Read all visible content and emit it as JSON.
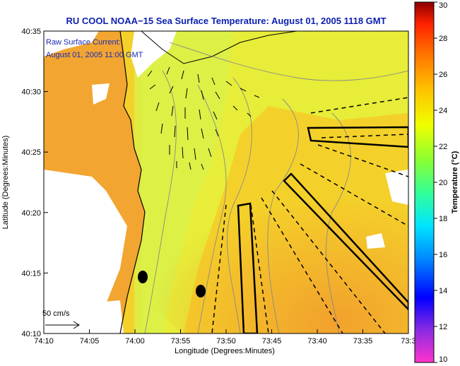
{
  "title": "RU COOL  NOAA−15  Sea Surface Temperature:  August 01, 2005 1118 GMT",
  "annotation": {
    "line1": "Raw Surface Current:",
    "line2": "August 01, 2005 11:00 GMT"
  },
  "axes": {
    "xlabel": "Longitude (Degrees:Minutes)",
    "ylabel": "Latitude (Degrees:Minutes)",
    "xticks": [
      "74:10",
      "74:05",
      "74:00",
      "73:55",
      "73:50",
      "73:45",
      "73:40",
      "73:35",
      "73:3"
    ],
    "yticks": [
      "40:35",
      "40:30",
      "40:25",
      "40:20",
      "40:15",
      "40:10"
    ]
  },
  "scale_arrow": {
    "label": "50 cm/s"
  },
  "colorbar": {
    "label": "Temperature (°C)",
    "ticks": [
      "30",
      "28",
      "26",
      "24",
      "22",
      "20",
      "18",
      "16",
      "14",
      "12",
      "10"
    ],
    "range": [
      10,
      30
    ],
    "colors": [
      "#ff33cc",
      "#8a2be2",
      "#0000ff",
      "#0080ff",
      "#00e5ff",
      "#33ff99",
      "#88ff33",
      "#f0ff00",
      "#ffc000",
      "#ff7000",
      "#ff2000",
      "#8b0000"
    ]
  },
  "map_colors": {
    "warm": "#f2a531",
    "mid": "#f4d324",
    "cool": "#e8f03a",
    "coast": "#000000",
    "bathy": "#8a8a8a"
  }
}
